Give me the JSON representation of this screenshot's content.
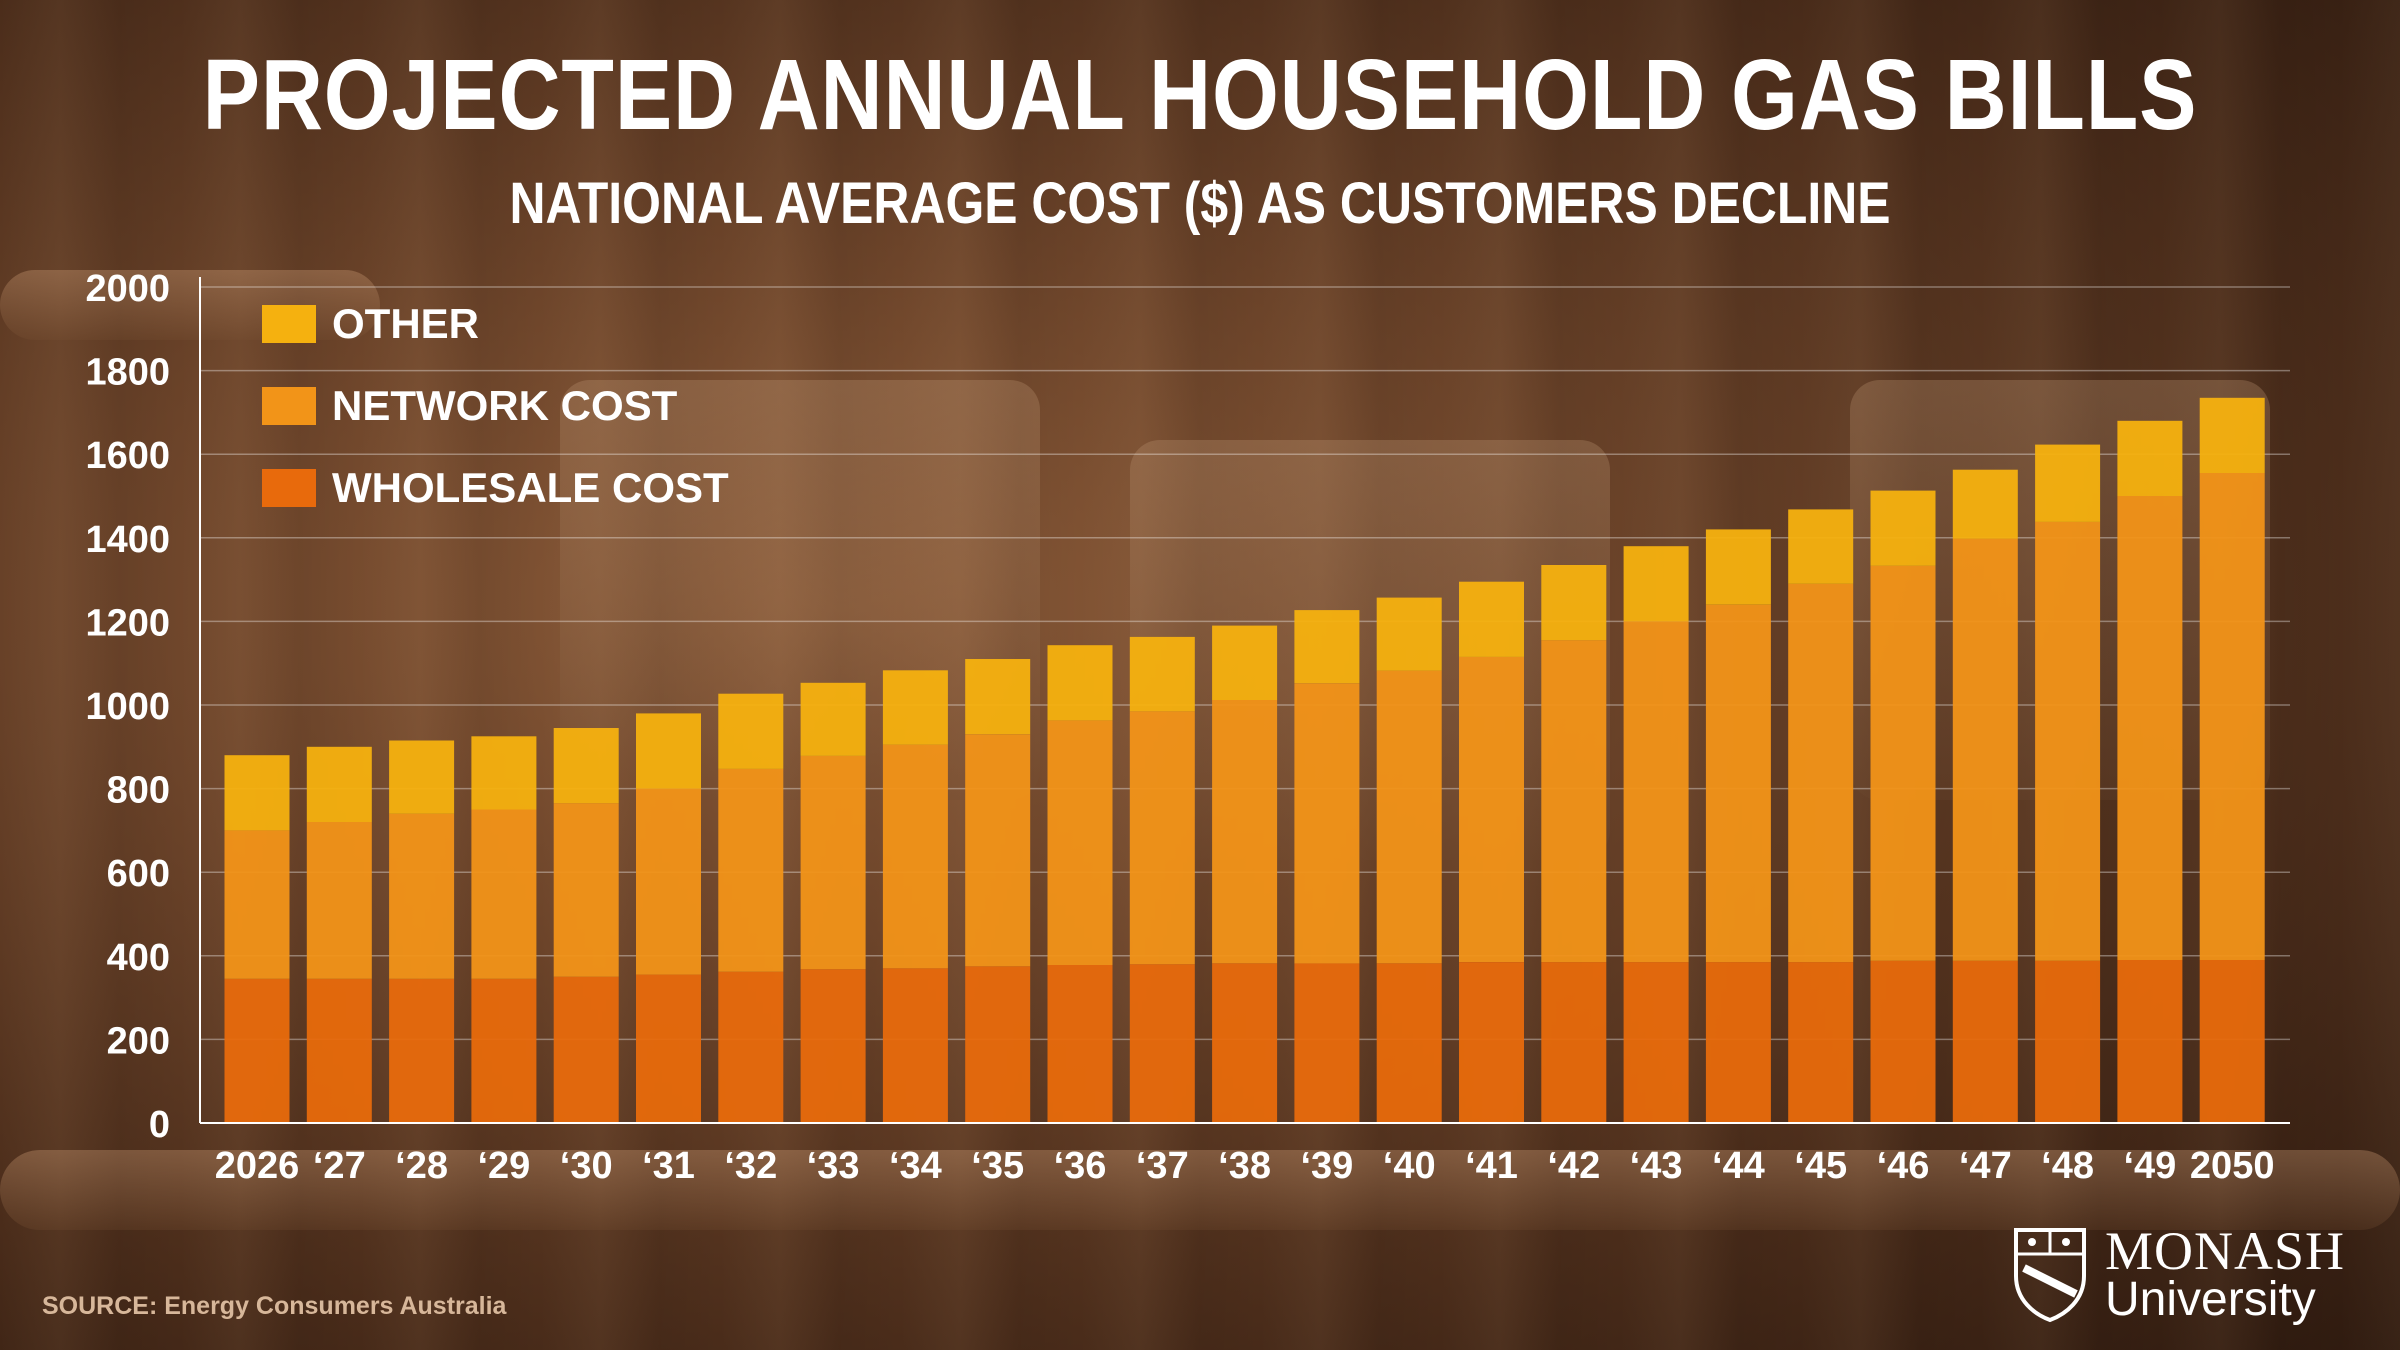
{
  "header": {
    "title": "PROJECTED ANNUAL HOUSEHOLD GAS BILLS",
    "subtitle": "NATIONAL AVERAGE COST ($) AS CUSTOMERS DECLINE"
  },
  "footer": {
    "source": "SOURCE: Energy Consumers Australia",
    "logo_line1": "MONASH",
    "logo_line2": "University"
  },
  "colors": {
    "wholesale": "#E86A0C",
    "network": "#F29418",
    "other": "#F5B10F",
    "text": "#FFFFFF",
    "grid": "rgba(255,255,255,0.35)"
  },
  "chart_data": {
    "type": "bar",
    "stacked": true,
    "categories": [
      "2026",
      "‘27",
      "‘28",
      "‘29",
      "‘30",
      "‘31",
      "‘32",
      "‘33",
      "‘34",
      "‘35",
      "‘36",
      "‘37",
      "‘38",
      "‘39",
      "‘40",
      "‘41",
      "‘42",
      "‘43",
      "‘44",
      "‘45",
      "‘46",
      "‘47",
      "‘48",
      "‘49",
      "2050"
    ],
    "series": [
      {
        "name": "WHOLESALE COST",
        "values": [
          345,
          345,
          345,
          345,
          350,
          355,
          362,
          368,
          370,
          375,
          378,
          380,
          382,
          382,
          382,
          385,
          385,
          385,
          385,
          385,
          388,
          388,
          388,
          390,
          390
        ]
      },
      {
        "name": "NETWORK COST",
        "values": [
          355,
          375,
          395,
          405,
          415,
          445,
          485,
          510,
          535,
          555,
          585,
          605,
          630,
          670,
          700,
          730,
          770,
          815,
          855,
          905,
          945,
          1010,
          1050,
          1110,
          1165
        ]
      },
      {
        "name": "OTHER",
        "values": [
          180,
          180,
          175,
          175,
          180,
          180,
          180,
          175,
          178,
          180,
          180,
          178,
          178,
          175,
          175,
          180,
          180,
          180,
          180,
          178,
          180,
          165,
          185,
          180,
          180
        ]
      }
    ],
    "ylim": [
      0,
      2000
    ],
    "yticks": [
      0,
      200,
      400,
      600,
      800,
      1000,
      1200,
      1400,
      1600,
      1800,
      2000
    ],
    "grid": true,
    "legend_position": "top-left",
    "legend_order": [
      "OTHER",
      "NETWORK COST",
      "WHOLESALE COST"
    ],
    "xlabel": "",
    "ylabel": ""
  }
}
